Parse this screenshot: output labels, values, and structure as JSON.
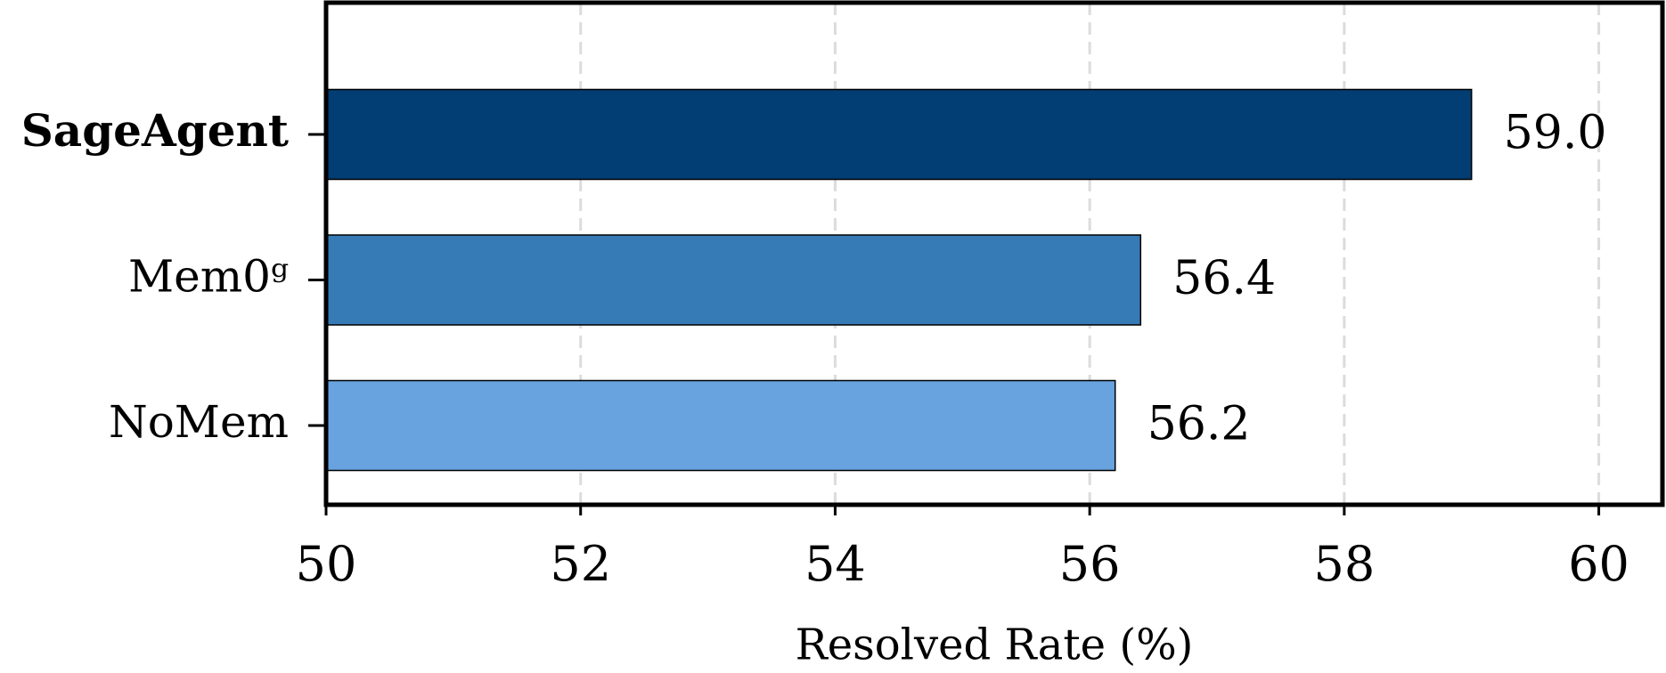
{
  "chart_data": {
    "type": "barh",
    "xlabel": "Resolved Rate (%)",
    "categories": [
      "SageAgent",
      "Mem0ᵍ",
      "NoMem"
    ],
    "values": [
      59.0,
      56.4,
      56.2
    ],
    "value_labels": [
      "59.0",
      "56.4",
      "56.2"
    ],
    "colors": [
      "#023d73",
      "#367bb6",
      "#68a3df"
    ],
    "xlim": [
      50,
      60.5
    ],
    "xticks": [
      50,
      52,
      54,
      56,
      58,
      60
    ],
    "grid": true
  }
}
